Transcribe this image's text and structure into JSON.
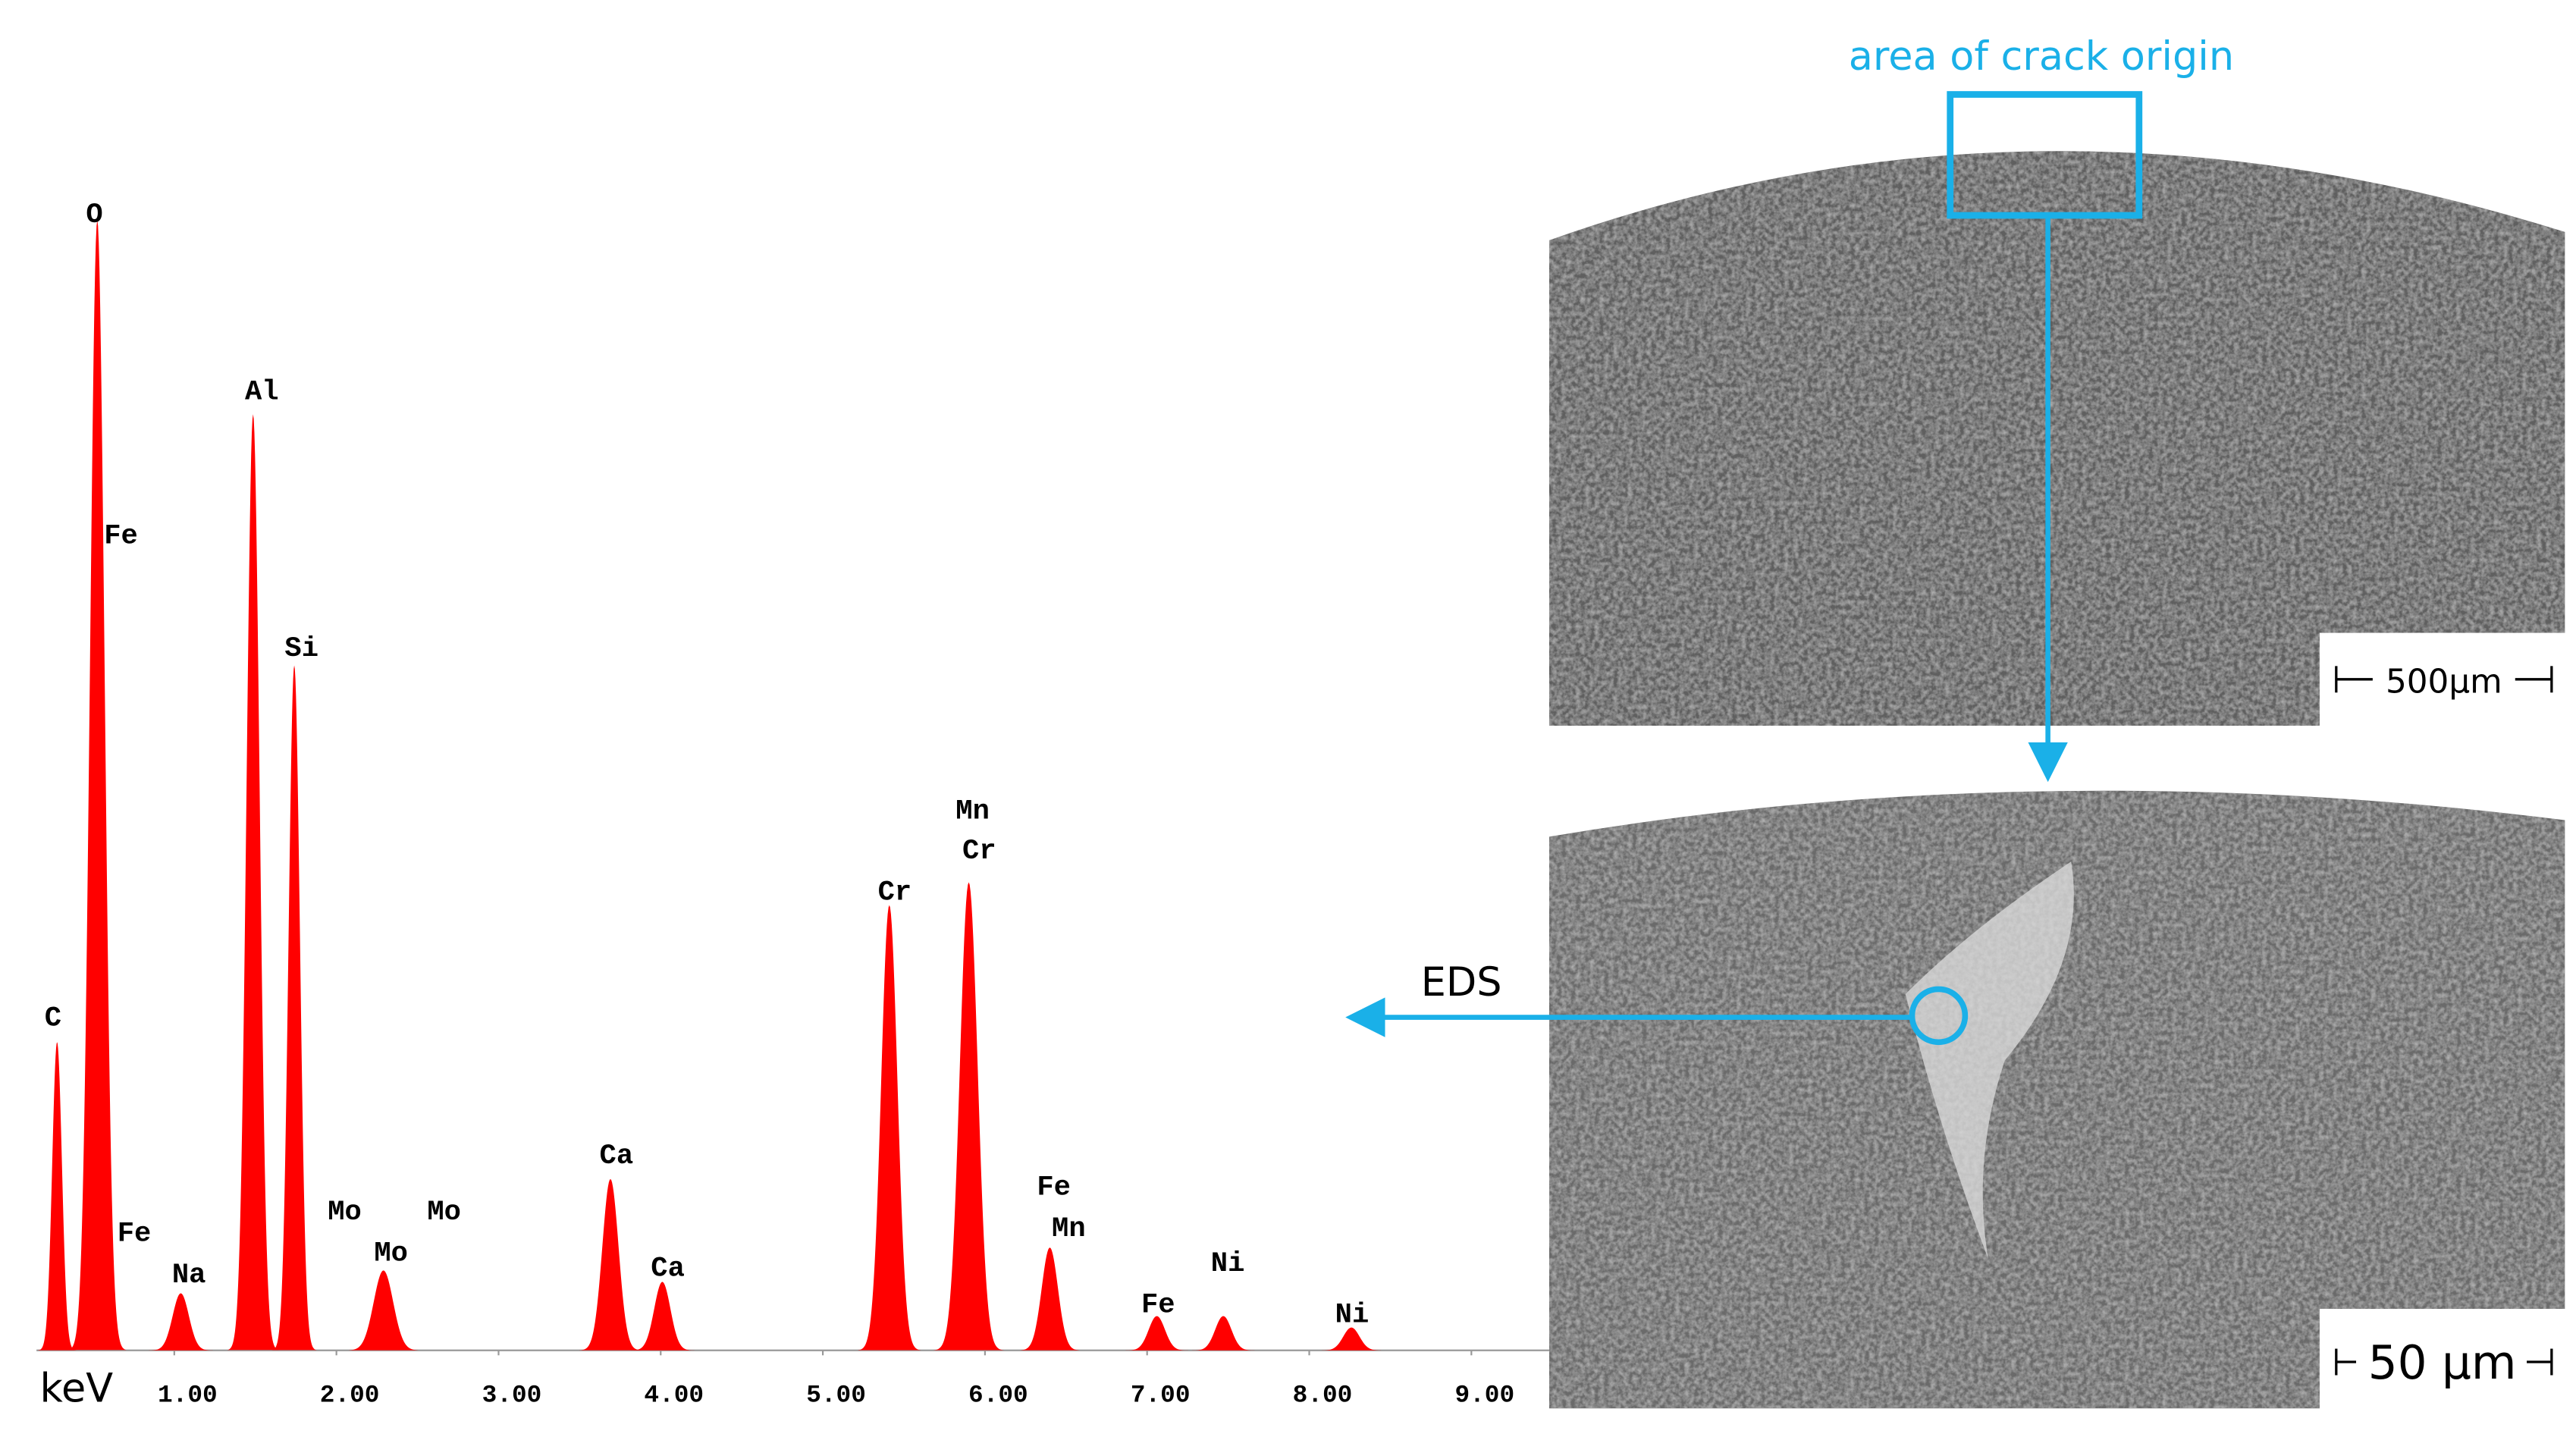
{
  "chart_data": {
    "type": "spectrum",
    "x_label": "keV",
    "xlim": [
      0.15,
      9.48
    ],
    "xticks": [
      {
        "value": 1,
        "label": "1.00"
      },
      {
        "value": 2,
        "label": "2.00"
      },
      {
        "value": 3,
        "label": "3.00"
      },
      {
        "value": 4,
        "label": "4.00"
      },
      {
        "value": 5,
        "label": "5.00"
      },
      {
        "value": 6,
        "label": "6.00"
      },
      {
        "value": 7,
        "label": "7.00"
      },
      {
        "value": 8,
        "label": "8.00"
      },
      {
        "value": 9,
        "label": "9.00"
      }
    ],
    "ylim": [
      0,
      100
    ],
    "color": "#ff0000",
    "x": [
      0.277,
      0.525,
      1.04,
      1.486,
      1.74,
      2.29,
      3.69,
      4.01,
      5.41,
      5.9,
      6.4,
      7.06,
      7.47,
      8.26
    ],
    "values": [
      27,
      99,
      5,
      82,
      60,
      7,
      15,
      6,
      39,
      41,
      9,
      3,
      3,
      2
    ],
    "annotations": [
      "O",
      "Fe",
      "Al",
      "Si",
      "C",
      "Fe",
      "Na",
      "Mo",
      "Mo",
      "Mo",
      "Ca",
      "Ca",
      "Cr",
      "Mn",
      "Cr",
      "Fe",
      "Mn",
      "Fe",
      "Ni",
      "Ni"
    ]
  },
  "images": {
    "annotation": "area of crack origin",
    "eds": "EDS",
    "top_scale": "500µm",
    "bottom_scale": "50 µm"
  }
}
